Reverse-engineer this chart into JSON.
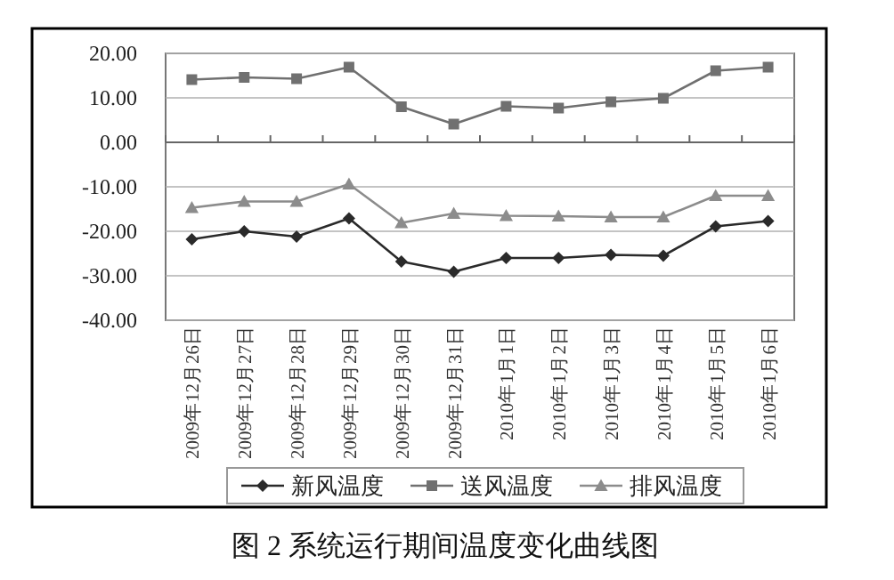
{
  "chart_data": {
    "type": "line",
    "annotations": [
      "图 2  系统运行期间温度变化曲线图"
    ],
    "categories": [
      "2009年12月26日",
      "2009年12月27日",
      "2009年12月28日",
      "2009年12月29日",
      "2009年12月30日",
      "2009年12月31日",
      "2010年1月1日",
      "2010年1月2日",
      "2010年1月3日",
      "2010年1月4日",
      "2010年1月5日",
      "2010年1月6日"
    ],
    "series": [
      {
        "name": "新风温度",
        "color": "#2a2a2a",
        "marker": "diamond",
        "values": [
          -21.8,
          -20.0,
          -21.2,
          -17.1,
          -26.8,
          -29.1,
          -26.0,
          -26.0,
          -25.3,
          -25.5,
          -18.9,
          -17.7
        ]
      },
      {
        "name": "送风温度",
        "color": "#707070",
        "marker": "square",
        "values": [
          14.1,
          14.6,
          14.3,
          16.9,
          8.0,
          4.1,
          8.1,
          7.7,
          9.1,
          9.9,
          16.1,
          16.9
        ]
      },
      {
        "name": "排风温度",
        "color": "#8c8c8c",
        "marker": "triangle",
        "values": [
          -14.7,
          -13.3,
          -13.3,
          -9.4,
          -18.1,
          -16.0,
          -16.5,
          -16.6,
          -16.8,
          -16.8,
          -12.0,
          -12.0
        ]
      }
    ],
    "ylim": [
      -40,
      20
    ],
    "yticks": [
      {
        "value": -40,
        "label": "-40.00"
      },
      {
        "value": -30,
        "label": "-30.00"
      },
      {
        "value": -20,
        "label": "-20.00"
      },
      {
        "value": -10,
        "label": "-10.00"
      },
      {
        "value": 0,
        "label": "0.00"
      },
      {
        "value": 10,
        "label": "10.00"
      },
      {
        "value": 20,
        "label": "20.00"
      }
    ],
    "grid": "y",
    "legend": "bottom",
    "line_style": "solid"
  }
}
